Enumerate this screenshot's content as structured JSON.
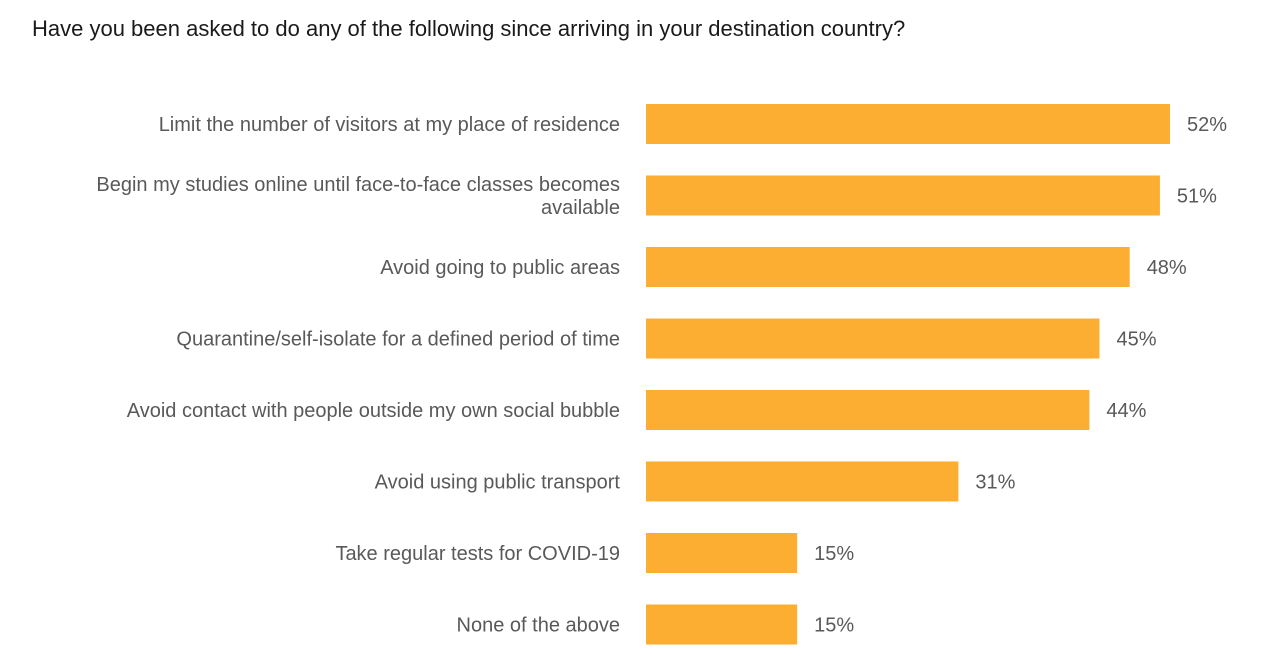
{
  "chart_data": {
    "type": "bar",
    "orientation": "horizontal",
    "title": "Have you been asked to do any of the following since arriving in your destination country?",
    "categories": [
      [
        "Limit the number of visitors at my place of residence"
      ],
      [
        "Begin my studies online until face-to-face classes becomes",
        "available"
      ],
      [
        "Avoid going to public areas"
      ],
      [
        "Quarantine/self-isolate for a defined period of time"
      ],
      [
        "Avoid contact with people outside my own social bubble"
      ],
      [
        "Avoid using public transport"
      ],
      [
        "Take regular tests for COVID-19"
      ],
      [
        "None of the above"
      ]
    ],
    "values": [
      52,
      51,
      48,
      45,
      44,
      31,
      15,
      15
    ],
    "value_labels": [
      "52%",
      "51%",
      "48%",
      "45%",
      "44%",
      "31%",
      "15%",
      "15%"
    ],
    "xlim": [
      0,
      52
    ],
    "bar_color": "#FBAE32",
    "grid": false,
    "legend": "none"
  }
}
